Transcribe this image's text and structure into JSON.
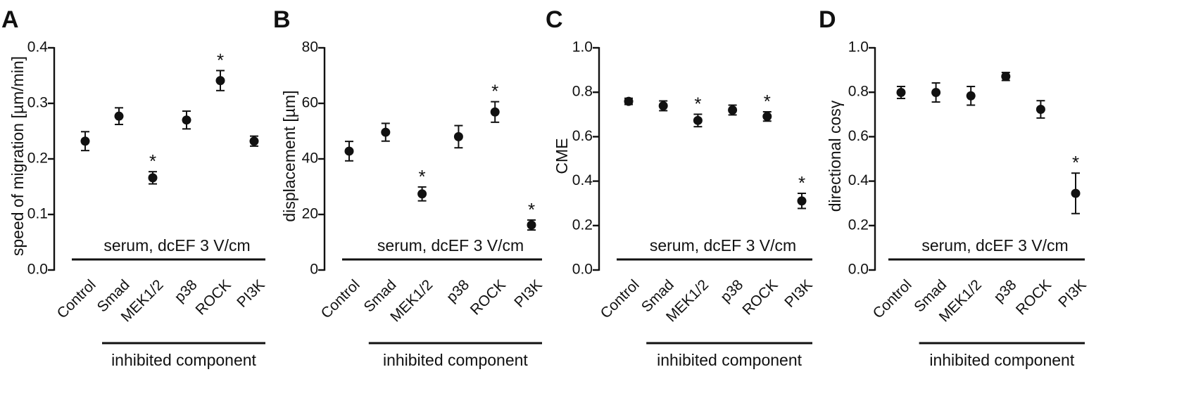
{
  "figure": {
    "condition_label": "serum, dcEF 3 V/cm",
    "x_group_label": "inhibited component"
  },
  "chart_data": [
    {
      "type": "scatter",
      "panel": "A",
      "categories": [
        "Control",
        "Smad",
        "MEK1/2",
        "p38",
        "ROCK",
        "PI3K"
      ],
      "values": [
        0.232,
        0.277,
        0.166,
        0.27,
        0.341,
        0.232
      ],
      "errors": [
        0.017,
        0.015,
        0.011,
        0.016,
        0.018,
        0.009
      ],
      "significant": [
        false,
        false,
        true,
        false,
        true,
        false
      ],
      "ylabel": "speed of migration [µm/min]",
      "ylim": [
        0,
        0.4
      ],
      "yticks": [
        "0.0",
        "0.1",
        "0.2",
        "0.3",
        "0.4"
      ],
      "grid": false
    },
    {
      "type": "scatter",
      "panel": "B",
      "categories": [
        "Control",
        "Smad",
        "MEK1/2",
        "p38",
        "ROCK",
        "PI3K"
      ],
      "values": [
        42.8,
        49.6,
        27.4,
        48.0,
        56.9,
        16.2
      ],
      "errors": [
        3.5,
        3.2,
        2.5,
        4.0,
        3.7,
        1.8
      ],
      "significant": [
        false,
        false,
        true,
        false,
        true,
        true
      ],
      "ylabel": "displacement [µm]",
      "ylim": [
        0,
        80
      ],
      "yticks": [
        "0",
        "20",
        "40",
        "60",
        "80"
      ],
      "grid": false
    },
    {
      "type": "scatter",
      "panel": "C",
      "categories": [
        "Control",
        "Smad",
        "MEK1/2",
        "p38",
        "ROCK",
        "PI3K"
      ],
      "values": [
        0.759,
        0.739,
        0.673,
        0.72,
        0.691,
        0.311
      ],
      "errors": [
        0.014,
        0.022,
        0.028,
        0.022,
        0.021,
        0.034
      ],
      "significant": [
        false,
        false,
        true,
        false,
        true,
        true
      ],
      "ylabel": "CME",
      "ylim": [
        0,
        1.0
      ],
      "yticks": [
        "0.0",
        "0.2",
        "0.4",
        "0.6",
        "0.8",
        "1.0"
      ],
      "grid": false
    },
    {
      "type": "scatter",
      "panel": "D",
      "categories": [
        "Control",
        "Smad",
        "MEK1/2",
        "p38",
        "ROCK",
        "PI3K"
      ],
      "values": [
        0.799,
        0.799,
        0.784,
        0.871,
        0.723,
        0.345
      ],
      "errors": [
        0.027,
        0.043,
        0.042,
        0.018,
        0.039,
        0.091
      ],
      "significant": [
        false,
        false,
        false,
        false,
        false,
        true
      ],
      "ylabel": "directional cosγ",
      "ylim": [
        0,
        1.0
      ],
      "yticks": [
        "0.0",
        "0.2",
        "0.4",
        "0.6",
        "0.8",
        "1.0"
      ],
      "grid": false
    }
  ]
}
